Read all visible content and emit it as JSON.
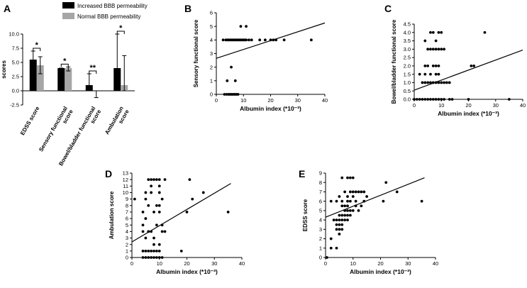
{
  "chart_data": [
    {
      "panel": "A",
      "type": "bar",
      "ylabel": "scores",
      "ylim": [
        -2.5,
        10.0
      ],
      "yticks": [
        "10.0",
        "7.5",
        "5.0",
        "2.5",
        "0.0",
        "-2.5"
      ],
      "categories": [
        "EDSS score",
        "Sensory functional score",
        "Bowel/bladder functional score",
        "Ambulation score"
      ],
      "category_lines": [
        [
          "EDSS score"
        ],
        [
          "Sensory functional",
          "score"
        ],
        [
          "Bowel/bladder functional",
          "score"
        ],
        [
          "Ambulation",
          "score"
        ]
      ],
      "series": [
        {
          "name": "Increased BBB permeability",
          "color": "#000000",
          "values": [
            5.5,
            4.0,
            1.0,
            4.0
          ],
          "err_low": [
            4.0,
            4.0,
            0.0,
            0.0
          ],
          "err_high": [
            7.0,
            4.0,
            3.0,
            10.0
          ]
        },
        {
          "name": "Normal BBB permeability",
          "color": "#a6a6a6",
          "values": [
            4.5,
            4.0,
            0.0,
            1.0
          ],
          "err_low": [
            3.0,
            3.5,
            -1.2,
            0.0
          ],
          "err_high": [
            6.0,
            4.2,
            0.0,
            6.2
          ]
        }
      ],
      "significance": [
        "*",
        "*",
        "**",
        "*"
      ]
    },
    {
      "panel": "B",
      "type": "scatter",
      "xlabel": "Albumin index (*10⁻³)",
      "ylabel": "Sensory functional score",
      "xlim": [
        0,
        40
      ],
      "ylim": [
        0,
        6
      ],
      "xticks": [
        "0",
        "10",
        "20",
        "30",
        "40"
      ],
      "yticks": [
        "0",
        "1",
        "2",
        "3",
        "4",
        "5",
        "6"
      ],
      "points": [
        [
          3,
          0
        ],
        [
          3.8,
          0
        ],
        [
          4.5,
          0
        ],
        [
          5,
          0
        ],
        [
          5.5,
          0
        ],
        [
          6,
          0
        ],
        [
          6.5,
          0
        ],
        [
          7,
          0
        ],
        [
          7.5,
          0
        ],
        [
          8,
          0
        ],
        [
          4,
          1
        ],
        [
          7,
          1
        ],
        [
          5.5,
          2
        ],
        [
          2.5,
          4
        ],
        [
          3.5,
          4
        ],
        [
          4,
          4
        ],
        [
          4.5,
          4
        ],
        [
          5,
          4
        ],
        [
          5.5,
          4
        ],
        [
          6,
          4
        ],
        [
          6.5,
          4
        ],
        [
          7,
          4
        ],
        [
          7.5,
          4
        ],
        [
          8,
          4
        ],
        [
          8.5,
          4
        ],
        [
          9,
          4
        ],
        [
          9.5,
          4
        ],
        [
          10,
          4
        ],
        [
          10.5,
          4
        ],
        [
          11,
          4
        ],
        [
          12,
          4
        ],
        [
          13,
          4
        ],
        [
          16,
          4
        ],
        [
          18,
          4
        ],
        [
          20,
          4
        ],
        [
          21,
          4
        ],
        [
          22,
          4
        ],
        [
          25,
          4
        ],
        [
          35,
          4
        ],
        [
          9,
          5
        ],
        [
          11,
          5
        ]
      ],
      "fit_line": [
        [
          0,
          2.65
        ],
        [
          40,
          5.25
        ]
      ]
    },
    {
      "panel": "C",
      "type": "scatter",
      "xlabel": "Albumin index (*10⁻³)",
      "ylabel": "Bowel/bladder functional score",
      "xlim": [
        0,
        40
      ],
      "ylim": [
        0,
        4.5
      ],
      "xticks": [
        "0",
        "10",
        "20",
        "30",
        "40"
      ],
      "yticks": [
        "0.0",
        "0.5",
        "1.0",
        "1.5",
        "2.0",
        "2.5",
        "3.0",
        "3.5",
        "4.0",
        "4.5"
      ],
      "points": [
        [
          0,
          0
        ],
        [
          1,
          0
        ],
        [
          2,
          0
        ],
        [
          3,
          0
        ],
        [
          4,
          0
        ],
        [
          5,
          0
        ],
        [
          6,
          0
        ],
        [
          7,
          0
        ],
        [
          8,
          0
        ],
        [
          9,
          0
        ],
        [
          10,
          0
        ],
        [
          11,
          0
        ],
        [
          13,
          0
        ],
        [
          14,
          0
        ],
        [
          20,
          0
        ],
        [
          35,
          0
        ],
        [
          3,
          1
        ],
        [
          4,
          1
        ],
        [
          5,
          1
        ],
        [
          6,
          1
        ],
        [
          7,
          1
        ],
        [
          8,
          1
        ],
        [
          9,
          1
        ],
        [
          10,
          1
        ],
        [
          11,
          1
        ],
        [
          12,
          1
        ],
        [
          13,
          1
        ],
        [
          2,
          1.5
        ],
        [
          4,
          1.5
        ],
        [
          6,
          1.5
        ],
        [
          8,
          1.5
        ],
        [
          9,
          1.5
        ],
        [
          4,
          2
        ],
        [
          5,
          2
        ],
        [
          7,
          2
        ],
        [
          8,
          2
        ],
        [
          9,
          2
        ],
        [
          21,
          2
        ],
        [
          22,
          2
        ],
        [
          5,
          3
        ],
        [
          6,
          3
        ],
        [
          7,
          3
        ],
        [
          8,
          3
        ],
        [
          9,
          3
        ],
        [
          10,
          3
        ],
        [
          11,
          3
        ],
        [
          4,
          3.5
        ],
        [
          8,
          3.5
        ],
        [
          6,
          4
        ],
        [
          7,
          4
        ],
        [
          9,
          4
        ],
        [
          10,
          4
        ],
        [
          26,
          4
        ]
      ],
      "fit_line": [
        [
          0,
          0.55
        ],
        [
          40,
          2.95
        ]
      ]
    },
    {
      "panel": "D",
      "type": "scatter",
      "xlabel": "Albumin index (*10⁻³)",
      "ylabel": "Ambulation score",
      "xlim": [
        0,
        40
      ],
      "ylim": [
        0,
        13
      ],
      "xticks": [
        "0",
        "10",
        "20",
        "30",
        "40"
      ],
      "yticks": [
        "0",
        "1",
        "2",
        "3",
        "4",
        "5",
        "6",
        "7",
        "8",
        "9",
        "10",
        "11",
        "12",
        "13"
      ],
      "points": [
        [
          1,
          9
        ],
        [
          4,
          0
        ],
        [
          5,
          0
        ],
        [
          6,
          0
        ],
        [
          7,
          0
        ],
        [
          8,
          0
        ],
        [
          9,
          0
        ],
        [
          10,
          0
        ],
        [
          11,
          0
        ],
        [
          5,
          1
        ],
        [
          6,
          1
        ],
        [
          7,
          1
        ],
        [
          8,
          1
        ],
        [
          9,
          1
        ],
        [
          10,
          1
        ],
        [
          4,
          1
        ],
        [
          10,
          2
        ],
        [
          8,
          2
        ],
        [
          5,
          3
        ],
        [
          8,
          3
        ],
        [
          4,
          4
        ],
        [
          6,
          4
        ],
        [
          7,
          4
        ],
        [
          11,
          4
        ],
        [
          12,
          4
        ],
        [
          4,
          5
        ],
        [
          9,
          5
        ],
        [
          11,
          5
        ],
        [
          5,
          6
        ],
        [
          4,
          7
        ],
        [
          8,
          7
        ],
        [
          10,
          7
        ],
        [
          20,
          7
        ],
        [
          35,
          7
        ],
        [
          6,
          8
        ],
        [
          9,
          8
        ],
        [
          10,
          8
        ],
        [
          5,
          9
        ],
        [
          11,
          9
        ],
        [
          22,
          9
        ],
        [
          5,
          10
        ],
        [
          7,
          10
        ],
        [
          10,
          10
        ],
        [
          26,
          10
        ],
        [
          7,
          11
        ],
        [
          10,
          11
        ],
        [
          6,
          12
        ],
        [
          7,
          12
        ],
        [
          8,
          12
        ],
        [
          9,
          12
        ],
        [
          10,
          12
        ],
        [
          12,
          12
        ],
        [
          21,
          12
        ],
        [
          18,
          1
        ]
      ],
      "fit_line": [
        [
          0,
          2.4
        ],
        [
          36,
          11.4
        ]
      ]
    },
    {
      "panel": "E",
      "type": "scatter",
      "xlabel": "Albumin index (*10⁻³)",
      "ylabel": "EDSS score",
      "xlim": [
        0,
        40
      ],
      "ylim": [
        0,
        9
      ],
      "xticks": [
        "0",
        "10",
        "20",
        "30",
        "40"
      ],
      "yticks": [
        "0",
        "1",
        "2",
        "3",
        "4",
        "5",
        "6",
        "7",
        "8",
        "9"
      ],
      "points": [
        [
          0.5,
          0
        ],
        [
          2,
          1
        ],
        [
          4,
          1
        ],
        [
          2,
          2
        ],
        [
          5,
          2.5
        ],
        [
          4,
          3
        ],
        [
          5,
          3
        ],
        [
          6,
          3
        ],
        [
          4,
          3.5
        ],
        [
          5,
          3.5
        ],
        [
          6,
          3.5
        ],
        [
          3,
          4
        ],
        [
          4,
          4
        ],
        [
          5,
          4
        ],
        [
          6,
          4
        ],
        [
          7,
          4
        ],
        [
          8,
          4
        ],
        [
          5,
          4.5
        ],
        [
          6,
          4.5
        ],
        [
          7,
          4.5
        ],
        [
          8,
          4.5
        ],
        [
          9,
          4.5
        ],
        [
          7,
          5
        ],
        [
          8,
          5
        ],
        [
          9,
          5
        ],
        [
          10,
          5
        ],
        [
          12,
          5
        ],
        [
          6,
          5.5
        ],
        [
          7,
          5.5
        ],
        [
          8,
          5.5
        ],
        [
          11,
          5.5
        ],
        [
          13,
          5.5
        ],
        [
          2,
          6
        ],
        [
          4,
          6
        ],
        [
          6,
          6
        ],
        [
          8,
          6
        ],
        [
          9,
          6
        ],
        [
          11,
          6
        ],
        [
          14,
          6
        ],
        [
          21,
          6
        ],
        [
          35,
          6
        ],
        [
          5,
          6.5
        ],
        [
          8,
          6.5
        ],
        [
          10,
          6.5
        ],
        [
          15,
          6.5
        ],
        [
          7,
          7
        ],
        [
          9,
          7
        ],
        [
          10,
          7
        ],
        [
          11,
          7
        ],
        [
          12,
          7
        ],
        [
          13,
          7
        ],
        [
          14,
          7
        ],
        [
          26,
          7
        ],
        [
          22,
          8
        ],
        [
          6,
          8.5
        ],
        [
          8,
          8.5
        ],
        [
          9,
          8.5
        ],
        [
          10,
          8.5
        ]
      ],
      "fit_line": [
        [
          0,
          4.3
        ],
        [
          36,
          8.5
        ]
      ]
    }
  ]
}
